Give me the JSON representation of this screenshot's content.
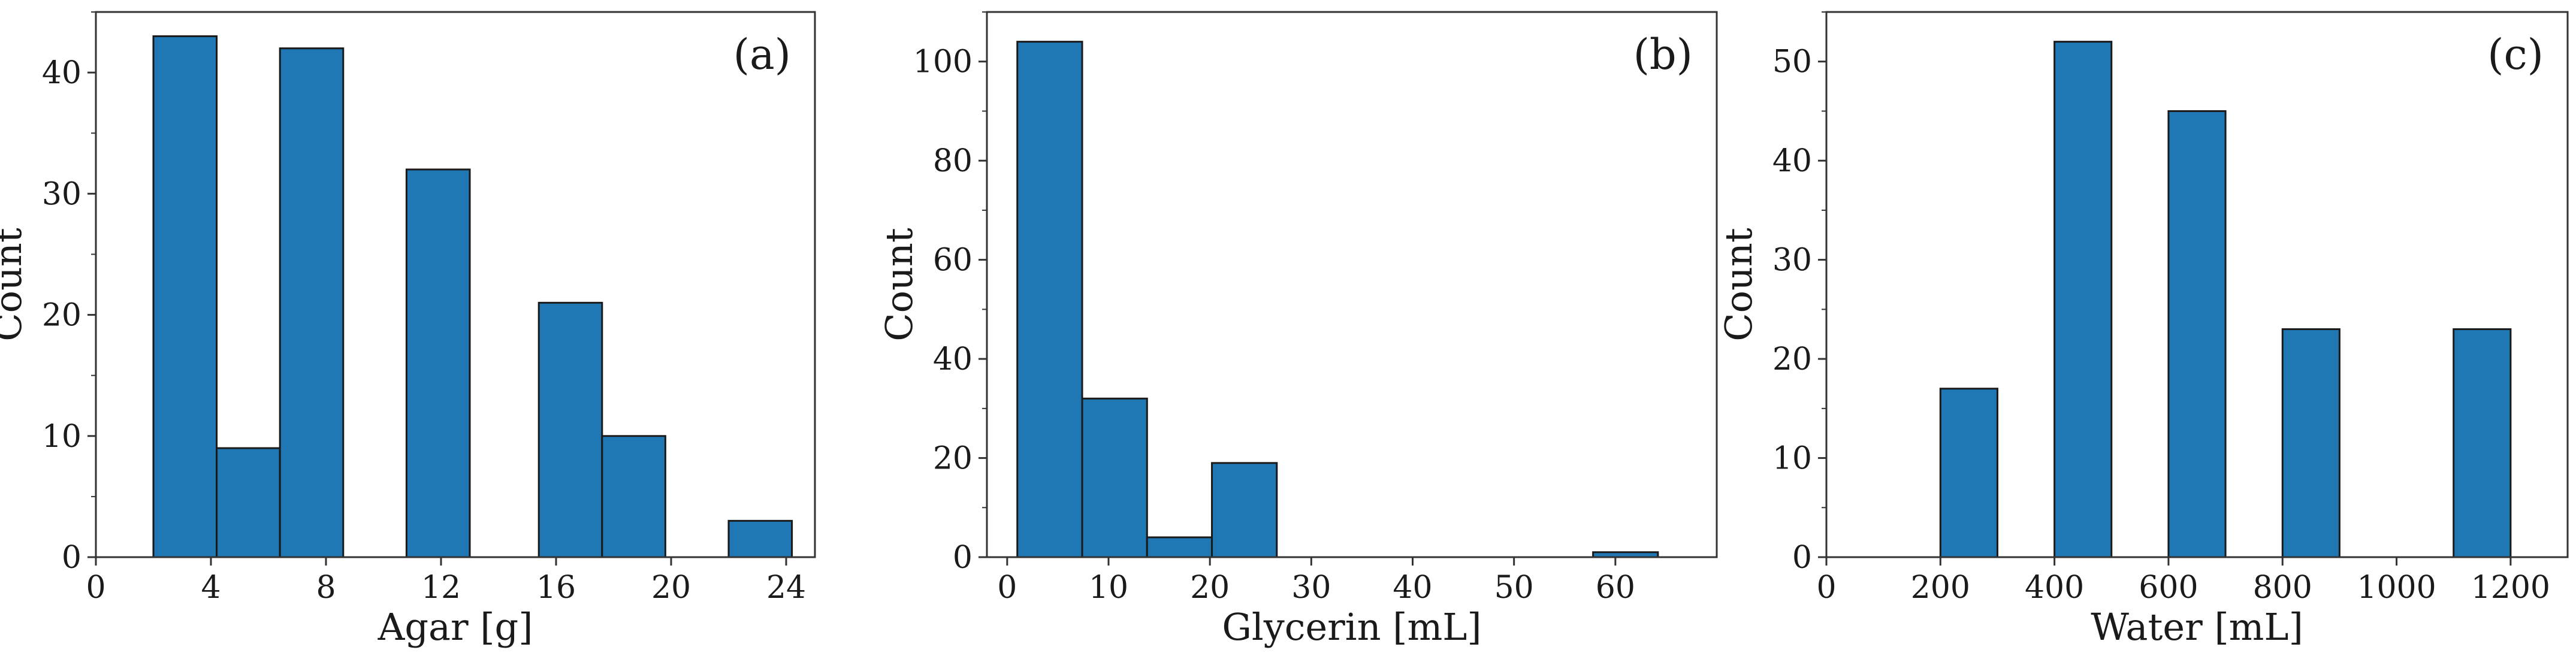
{
  "bar_color": "#1f77b4",
  "chart_data": [
    {
      "type": "bar",
      "panel_label": "(a)",
      "xlabel": "Agar [g]",
      "ylabel": "Count",
      "xlim": [
        0,
        25
      ],
      "ylim": [
        0,
        45
      ],
      "xticks": [
        0,
        4,
        8,
        12,
        16,
        20,
        24
      ],
      "xtick_labels": [
        "0",
        "4",
        "8",
        "12",
        "16",
        "20",
        "24"
      ],
      "yticks": [
        0,
        10,
        20,
        30,
        40
      ],
      "ytick_labels": [
        "0",
        "10",
        "20",
        "30",
        "40"
      ],
      "yminor_step": 5,
      "bins": [
        {
          "x0": 2.0,
          "x1": 4.2,
          "count": 43
        },
        {
          "x0": 4.2,
          "x1": 6.4,
          "count": 9
        },
        {
          "x0": 6.4,
          "x1": 8.6,
          "count": 42
        },
        {
          "x0": 10.8,
          "x1": 13.0,
          "count": 32
        },
        {
          "x0": 15.4,
          "x1": 17.6,
          "count": 21
        },
        {
          "x0": 17.6,
          "x1": 19.8,
          "count": 10
        },
        {
          "x0": 22.0,
          "x1": 24.2,
          "count": 3
        }
      ]
    },
    {
      "type": "bar",
      "panel_label": "(b)",
      "xlabel": "Glycerin [mL]",
      "ylabel": "Count",
      "xlim": [
        -2,
        70
      ],
      "ylim": [
        0,
        110
      ],
      "xticks": [
        0,
        10,
        20,
        30,
        40,
        50,
        60
      ],
      "xtick_labels": [
        "0",
        "10",
        "20",
        "30",
        "40",
        "50",
        "60"
      ],
      "yticks": [
        0,
        20,
        40,
        60,
        80,
        100
      ],
      "ytick_labels": [
        "0",
        "20",
        "40",
        "60",
        "80",
        "100"
      ],
      "yminor_step": 10,
      "bins": [
        {
          "x0": 1.0,
          "x1": 7.4,
          "count": 104
        },
        {
          "x0": 7.4,
          "x1": 13.8,
          "count": 32
        },
        {
          "x0": 13.8,
          "x1": 20.2,
          "count": 4
        },
        {
          "x0": 20.2,
          "x1": 26.6,
          "count": 19
        },
        {
          "x0": 57.8,
          "x1": 64.2,
          "count": 1
        }
      ]
    },
    {
      "type": "bar",
      "panel_label": "(c)",
      "xlabel": "Water [mL]",
      "ylabel": "Count",
      "xlim": [
        0,
        1300
      ],
      "ylim": [
        0,
        55
      ],
      "xticks": [
        0,
        200,
        400,
        600,
        800,
        1000,
        1200
      ],
      "xtick_labels": [
        "0",
        "200",
        "400",
        "600",
        "800",
        "1000",
        "1200"
      ],
      "yticks": [
        0,
        10,
        20,
        30,
        40,
        50
      ],
      "ytick_labels": [
        "0",
        "10",
        "20",
        "30",
        "40",
        "50"
      ],
      "yminor_step": 5,
      "bins": [
        {
          "x0": 200,
          "x1": 300,
          "count": 17
        },
        {
          "x0": 400,
          "x1": 500,
          "count": 52
        },
        {
          "x0": 600,
          "x1": 700,
          "count": 45
        },
        {
          "x0": 800,
          "x1": 900,
          "count": 23
        },
        {
          "x0": 1100,
          "x1": 1200,
          "count": 23
        }
      ]
    }
  ]
}
